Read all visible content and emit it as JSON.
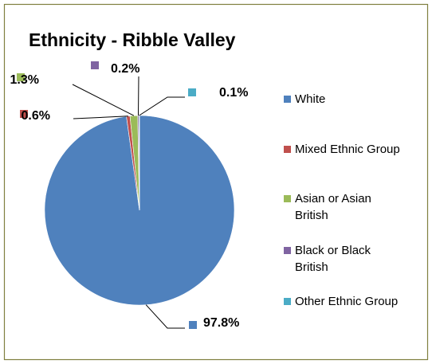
{
  "chart_data": {
    "type": "pie",
    "title": "Ethnicity - Ribble Valley",
    "series": [
      {
        "categories": [
          "White",
          "Mixed Ethnic Group",
          "Asian or Asian British",
          "Black or Black British",
          "Other Ethnic Group"
        ],
        "legend_lines": [
          [
            "White"
          ],
          [
            "Mixed Ethnic Group"
          ],
          [
            "Asian or Asian",
            "British"
          ],
          [
            "Black or Black",
            "British"
          ],
          [
            "Other Ethnic Group"
          ]
        ],
        "values": [
          97.8,
          0.6,
          1.3,
          0.2,
          0.1
        ],
        "labels": [
          "97.8%",
          "0.6%",
          "1.3%",
          "0.2%",
          "0.1%"
        ],
        "colors": [
          "#4F81BD",
          "#C0504D",
          "#9BBB59",
          "#8064A2",
          "#4BACC6"
        ]
      }
    ],
    "legend": "right",
    "data_labels": "outside with leader lines"
  },
  "style": {
    "background": "#FFFFFF",
    "border": "#7F7F3F"
  }
}
